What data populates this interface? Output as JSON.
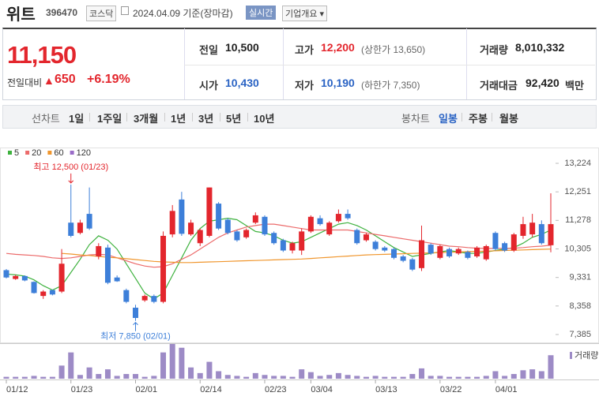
{
  "header": {
    "name": "위트",
    "code": "396470",
    "market": "코스닥",
    "date": "2024.04.09 기준(장마감)",
    "realtime": "실시간",
    "company": "기업개요"
  },
  "price": {
    "current": "11,150",
    "change_label": "전일대비",
    "change": "650",
    "change_rate": "+6.19%"
  },
  "info": [
    {
      "label": "전일",
      "value": "10,500"
    },
    {
      "label": "고가",
      "value": "12,200",
      "note": "(상한가 13,650)"
    },
    {
      "label": "거래량",
      "value": "8,010,332"
    },
    {
      "label": "시가",
      "value": "10,430"
    },
    {
      "label": "저가",
      "value": "10,190",
      "note": "(하한가 7,350)"
    },
    {
      "label": "거래대금",
      "value": "92,420",
      "unit": "백만"
    }
  ],
  "tabs": {
    "line_label": "선차트",
    "line": [
      "1일",
      "1주일",
      "3개월",
      "1년",
      "3년",
      "5년",
      "10년"
    ],
    "candle_label": "봉차트",
    "candle": [
      "일봉",
      "주봉",
      "월봉"
    ]
  },
  "chart_data": {
    "type": "candlestick",
    "categories": [
      "01/12",
      null,
      null,
      null,
      null,
      null,
      null,
      "01/23",
      null,
      null,
      null,
      null,
      null,
      null,
      "02/01",
      null,
      null,
      null,
      null,
      null,
      null,
      "02/14",
      null,
      null,
      null,
      null,
      null,
      null,
      "02/23",
      null,
      null,
      null,
      null,
      "03/04",
      null,
      null,
      null,
      null,
      null,
      null,
      "03/13",
      null,
      null,
      null,
      null,
      null,
      null,
      "03/22",
      null,
      null,
      null,
      null,
      null,
      "04/01",
      null,
      null,
      null,
      null,
      null,
      null
    ],
    "open": [
      9580,
      9280,
      9380,
      9180,
      8700,
      8900,
      8850,
      11200,
      10850,
      11500,
      10050,
      10350,
      9330,
      8900,
      8300,
      8550,
      8700,
      8500,
      10800,
      11990,
      10800,
      10500,
      10750,
      11850,
      11300,
      10900,
      10700,
      11200,
      11400,
      10850,
      10600,
      10250,
      10250,
      10900,
      11350,
      10800,
      11250,
      11500,
      10950,
      10600,
      10550,
      10350,
      10300,
      10050,
      9950,
      9650,
      10450,
      10000,
      10300,
      10150,
      10200,
      10050,
      9950,
      10850,
      10500,
      10250,
      10750,
      10800,
      11150,
      10430
    ],
    "high": [
      9620,
      9420,
      9400,
      9200,
      8900,
      8920,
      10300,
      12500,
      11300,
      12400,
      10500,
      10450,
      9400,
      8950,
      8400,
      8750,
      8750,
      10900,
      11800,
      12251,
      11300,
      11000,
      12400,
      11900,
      11350,
      10950,
      11000,
      11550,
      11450,
      10900,
      10650,
      10550,
      11000,
      11450,
      11450,
      11250,
      11650,
      11650,
      11000,
      10850,
      10600,
      10400,
      10350,
      10100,
      10000,
      11100,
      10500,
      10450,
      10350,
      10350,
      10250,
      10400,
      10450,
      10900,
      10550,
      10850,
      11400,
      11500,
      11278,
      12200
    ],
    "low": [
      9300,
      9250,
      9200,
      8780,
      8600,
      8720,
      8800,
      10700,
      10800,
      10950,
      9950,
      9100,
      9180,
      8450,
      7850,
      8500,
      8450,
      8450,
      10700,
      10750,
      10750,
      10400,
      10700,
      10950,
      10800,
      10550,
      10650,
      11150,
      10750,
      10450,
      10200,
      10150,
      10100,
      10850,
      11100,
      10750,
      11200,
      11300,
      10450,
      10550,
      10250,
      10200,
      9950,
      9850,
      9550,
      9550,
      10100,
      9950,
      10000,
      10100,
      9950,
      10000,
      9900,
      10250,
      10200,
      10200,
      10650,
      10700,
      10450,
      10190
    ],
    "close": [
      9330,
      9380,
      9230,
      8800,
      8850,
      8750,
      9800,
      10750,
      11200,
      11000,
      10400,
      9150,
      9200,
      8500,
      7950,
      8700,
      8500,
      10750,
      11600,
      10820,
      11200,
      10950,
      12400,
      11000,
      10850,
      10600,
      10950,
      11450,
      10800,
      10500,
      10250,
      10500,
      10900,
      11400,
      11150,
      11200,
      11500,
      11350,
      10500,
      10800,
      10300,
      10250,
      10000,
      9900,
      9600,
      10600,
      10150,
      10400,
      10050,
      10300,
      10000,
      10350,
      10400,
      10300,
      10250,
      10800,
      11150,
      11200,
      10500,
      11150
    ],
    "volume": [
      640000,
      640000,
      640000,
      960000,
      640000,
      640000,
      4480000,
      8960000,
      1280000,
      3840000,
      1600000,
      3200000,
      960000,
      1600000,
      1600000,
      640000,
      960000,
      8960000,
      11840000,
      10560000,
      3840000,
      1920000,
      5760000,
      2560000,
      1280000,
      960000,
      640000,
      1920000,
      1280000,
      960000,
      960000,
      640000,
      3200000,
      2240000,
      960000,
      1280000,
      1920000,
      1280000,
      960000,
      640000,
      960000,
      640000,
      640000,
      640000,
      1600000,
      3520000,
      960000,
      960000,
      640000,
      640000,
      640000,
      640000,
      960000,
      2560000,
      960000,
      1600000,
      2880000,
      3200000,
      2560000,
      8010332
    ],
    "volume_label": "거래량",
    "up_color": "#e3262d",
    "down_color": "#3d7fd9",
    "volume_color": "#9d8bc6",
    "series": [
      {
        "name": "5",
        "color": "#3fb23f",
        "values": [
          9450,
          9420,
          9380,
          9250,
          9050,
          8900,
          9050,
          9500,
          9950,
          10450,
          10750,
          10600,
          10300,
          9800,
          9300,
          8800,
          8600,
          8800,
          9400,
          10000,
          10600,
          11000,
          11250,
          11300,
          11350,
          11300,
          11100,
          10900,
          10850,
          10750,
          10600,
          10500,
          10550,
          10700,
          10850,
          11000,
          11150,
          11200,
          11100,
          10950,
          10750,
          10550,
          10350,
          10200,
          10050,
          10100,
          10150,
          10200,
          10250,
          10200,
          10150,
          10150,
          10200,
          10250,
          10300,
          10350,
          10500,
          10700,
          10800,
          10950
        ]
      },
      {
        "name": "20",
        "color": "#ec6b6b",
        "values": [
          10150,
          10120,
          10100,
          10080,
          10050,
          10000,
          9980,
          10000,
          10050,
          10100,
          10120,
          10100,
          10000,
          9900,
          9800,
          9720,
          9680,
          9700,
          9800,
          9950,
          10100,
          10300,
          10500,
          10700,
          10850,
          10950,
          11050,
          11100,
          11150,
          11150,
          11100,
          11050,
          11000,
          10950,
          10950,
          10950,
          10950,
          10950,
          10900,
          10850,
          10800,
          10750,
          10700,
          10650,
          10600,
          10550,
          10500,
          10450,
          10400,
          10380,
          10350,
          10330,
          10320,
          10320,
          10320,
          10330,
          10350,
          10380,
          10400,
          10430
        ]
      },
      {
        "name": "60",
        "color": "#f0962d",
        "values": [
          null,
          null,
          null,
          null,
          null,
          null,
          10150,
          10130,
          10100,
          10080,
          10050,
          10020,
          10000,
          9970,
          9940,
          9910,
          9880,
          9860,
          9850,
          9840,
          9840,
          9850,
          9860,
          9870,
          9880,
          9890,
          9900,
          9910,
          9920,
          9930,
          9940,
          9950,
          9960,
          9980,
          10000,
          10020,
          10040,
          10060,
          10080,
          10100,
          10110,
          10120,
          10130,
          10140,
          10150,
          10160,
          10170,
          10180,
          10190,
          10200,
          10210,
          10220,
          10230,
          10240,
          10250,
          10260,
          10270,
          10280,
          10290,
          10300
        ]
      },
      {
        "name": "120",
        "color": "#9a6cc8",
        "values": [
          null,
          null,
          null,
          null,
          null,
          null,
          null,
          null,
          null,
          null,
          null,
          null,
          null,
          null,
          null,
          null,
          null,
          null,
          null,
          null,
          null,
          null,
          null,
          null,
          null,
          null,
          null,
          null,
          null,
          null,
          null,
          null,
          null,
          null,
          null,
          null,
          null,
          null,
          null,
          null,
          null,
          null,
          null,
          null,
          null,
          null,
          null,
          null,
          null,
          null,
          null,
          null,
          null,
          null,
          null,
          null,
          null,
          null,
          null,
          null
        ]
      }
    ],
    "ylim": [
      7170,
      13466
    ],
    "yticks": [
      {
        "value": 13224,
        "label": "13,224"
      },
      {
        "value": 12251,
        "label": "12,251"
      },
      {
        "value": 11278,
        "label": "11,278"
      },
      {
        "value": 10305,
        "label": "10,305"
      },
      {
        "value": 9331,
        "label": "9,331"
      },
      {
        "value": 8358,
        "label": "8,358"
      },
      {
        "value": 7385,
        "label": "7,385"
      }
    ],
    "annotations": [
      {
        "text": "최고 12,500 (01/23)"
      },
      {
        "text": "최저 7,850 (02/01)"
      }
    ]
  }
}
